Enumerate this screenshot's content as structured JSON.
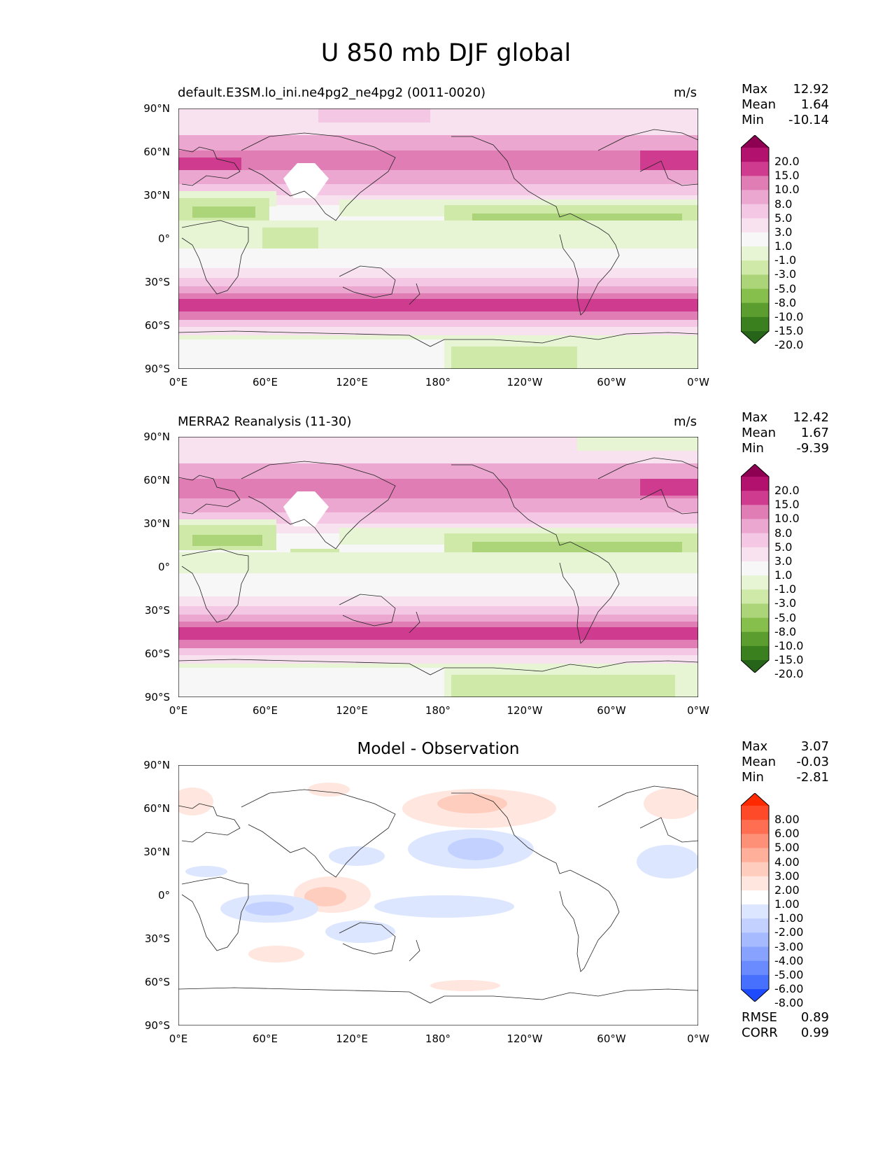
{
  "figure": {
    "title": "U 850 mb DJF global"
  },
  "panels": [
    {
      "id": "model",
      "title_left": "default.E3SM.lo_ini.ne4pg2_ne4pg2 (0011-0020)",
      "title_center": "",
      "units": "m/s",
      "stats": {
        "max_label": "Max",
        "max": "12.92",
        "mean_label": "Mean",
        "mean": "1.64",
        "min_label": "Min",
        "min": "-10.14"
      },
      "colorbar": {
        "levels": [
          "20.0",
          "15.0",
          "10.0",
          "8.0",
          "5.0",
          "3.0",
          "1.0",
          "-1.0",
          "-3.0",
          "-5.0",
          "-8.0",
          "-10.0",
          "-15.0",
          "-20.0"
        ],
        "colors": [
          "#8e0152",
          "#b2126d",
          "#cf3b8e",
          "#e07db4",
          "#eba7d0",
          "#f4c8e4",
          "#f8e2ef",
          "#f7f7f7",
          "#e8f5d5",
          "#cfe9a8",
          "#acd57a",
          "#86bf4c",
          "#5b9e2f",
          "#3b801f",
          "#266419"
        ]
      }
    },
    {
      "id": "obs",
      "title_left": "MERRA2 Reanalysis (11-30)",
      "title_center": "",
      "units": "m/s",
      "stats": {
        "max_label": "Max",
        "max": "12.42",
        "mean_label": "Mean",
        "mean": "1.67",
        "min_label": "Min",
        "min": "-9.39"
      },
      "colorbar": {
        "levels": [
          "20.0",
          "15.0",
          "10.0",
          "8.0",
          "5.0",
          "3.0",
          "1.0",
          "-1.0",
          "-3.0",
          "-5.0",
          "-8.0",
          "-10.0",
          "-15.0",
          "-20.0"
        ],
        "colors": [
          "#8e0152",
          "#b2126d",
          "#cf3b8e",
          "#e07db4",
          "#eba7d0",
          "#f4c8e4",
          "#f8e2ef",
          "#f7f7f7",
          "#e8f5d5",
          "#cfe9a8",
          "#acd57a",
          "#86bf4c",
          "#5b9e2f",
          "#3b801f",
          "#266419"
        ]
      }
    },
    {
      "id": "diff",
      "title_left": "",
      "title_center": "Model - Observation",
      "units": "",
      "stats": {
        "max_label": "Max",
        "max": "3.07",
        "mean_label": "Mean",
        "mean": "-0.03",
        "min_label": "Min",
        "min": "-2.81"
      },
      "metrics": {
        "rmse_label": "RMSE",
        "rmse": "0.89",
        "corr_label": "CORR",
        "corr": "0.99"
      },
      "colorbar": {
        "levels": [
          "8.00",
          "6.00",
          "5.00",
          "4.00",
          "3.00",
          "2.00",
          "1.00",
          "-1.00",
          "-2.00",
          "-3.00",
          "-4.00",
          "-5.00",
          "-6.00",
          "-8.00"
        ],
        "colors": [
          "#ff2a00",
          "#ff4a2a",
          "#ff6e50",
          "#ff9078",
          "#ffaf9a",
          "#ffcdbe",
          "#ffe6de",
          "#ffffff",
          "#dde6ff",
          "#c2d1ff",
          "#a6bbff",
          "#88a3ff",
          "#6a8bff",
          "#4870ff",
          "#1f4bff"
        ]
      }
    }
  ],
  "axes": {
    "lat_ticks": [
      "90°N",
      "60°N",
      "30°N",
      "0°",
      "30°S",
      "60°S",
      "90°S"
    ],
    "lon_ticks": [
      "0°E",
      "60°E",
      "120°E",
      "180°",
      "120°W",
      "60°W",
      "0°W"
    ]
  }
}
